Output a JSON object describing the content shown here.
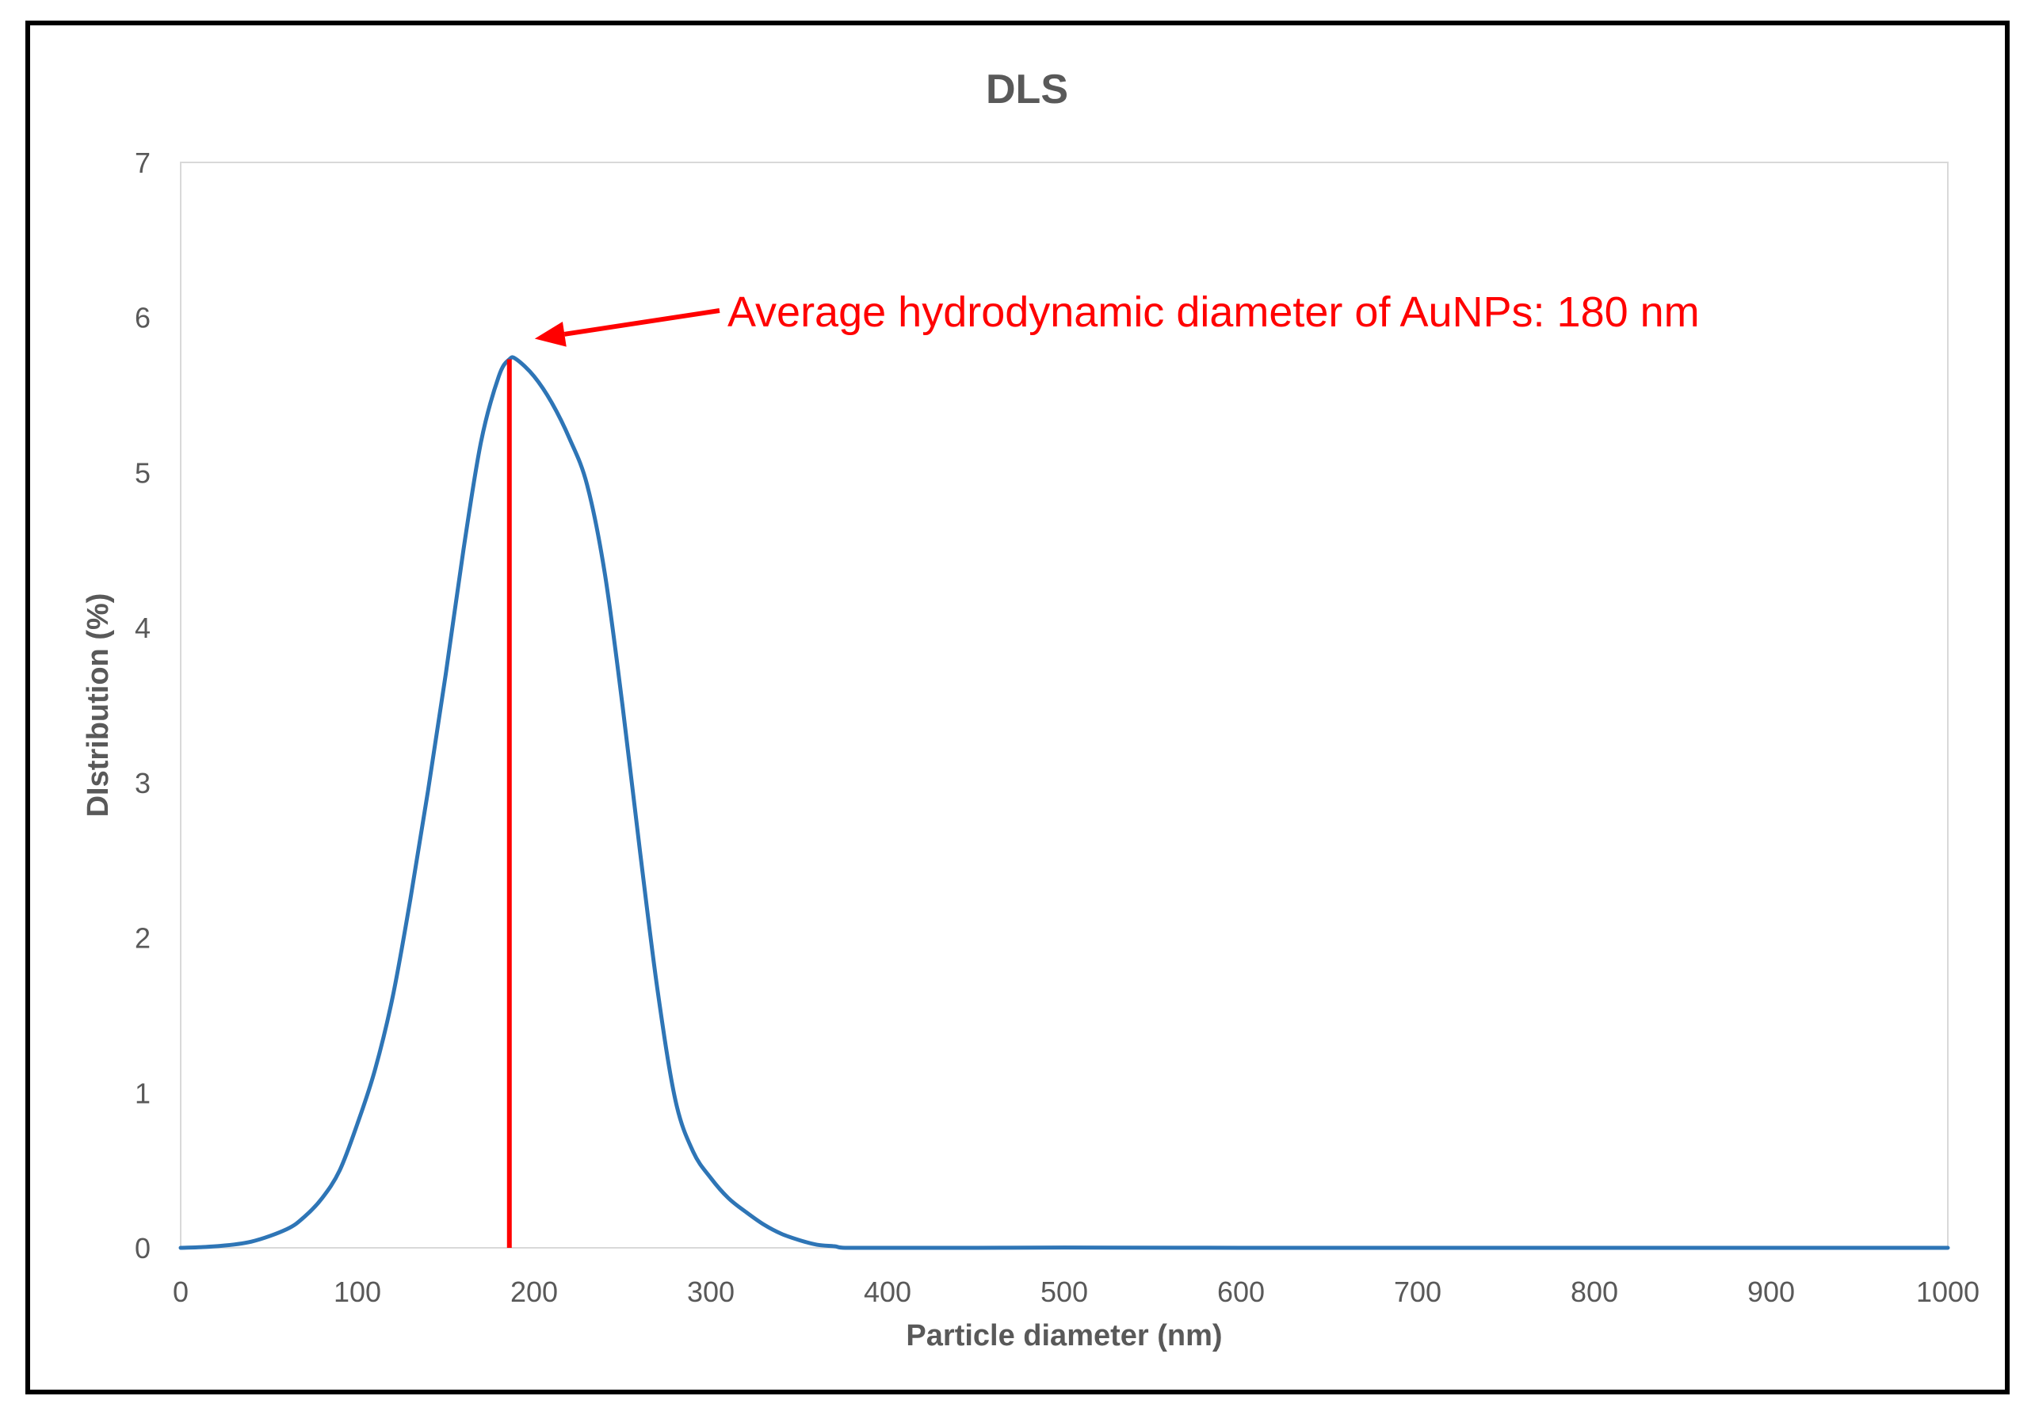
{
  "chart_data": {
    "type": "line",
    "title": "DLS",
    "xlabel": "Particle diameter (nm)",
    "ylabel": "DIstribution (%)",
    "xlim": [
      0,
      1000
    ],
    "ylim": [
      0,
      7
    ],
    "xticks": [
      0,
      100,
      200,
      300,
      400,
      500,
      600,
      700,
      800,
      900,
      1000
    ],
    "yticks": [
      0,
      1,
      2,
      3,
      4,
      5,
      6,
      7
    ],
    "grid": false,
    "legend": "none",
    "series": [
      {
        "color": "#2e75b6",
        "x": [
          0,
          20,
          40,
          60,
          70,
          80,
          90,
          100,
          110,
          120,
          130,
          140,
          150,
          160,
          170,
          180,
          186,
          190,
          200,
          210,
          220,
          230,
          240,
          250,
          260,
          270,
          280,
          290,
          300,
          310,
          320,
          330,
          340,
          350,
          360,
          370,
          376,
          400,
          450,
          500,
          600,
          700,
          800,
          900,
          1000
        ],
        "y": [
          0,
          0.01,
          0.04,
          0.12,
          0.2,
          0.32,
          0.5,
          0.8,
          1.15,
          1.62,
          2.25,
          2.95,
          3.7,
          4.5,
          5.2,
          5.62,
          5.73,
          5.73,
          5.62,
          5.45,
          5.22,
          4.92,
          4.35,
          3.5,
          2.55,
          1.65,
          0.95,
          0.62,
          0.45,
          0.32,
          0.23,
          0.15,
          0.09,
          0.05,
          0.02,
          0.01,
          0,
          0,
          0,
          0.002,
          0,
          0,
          0,
          0,
          0
        ]
      }
    ],
    "annotations": [
      {
        "text": "Average hydrodynamic diameter of AuNPs: 180 nm",
        "color": "#ff0000",
        "vline_x": 186,
        "vline_top_y": 5.73
      }
    ]
  }
}
